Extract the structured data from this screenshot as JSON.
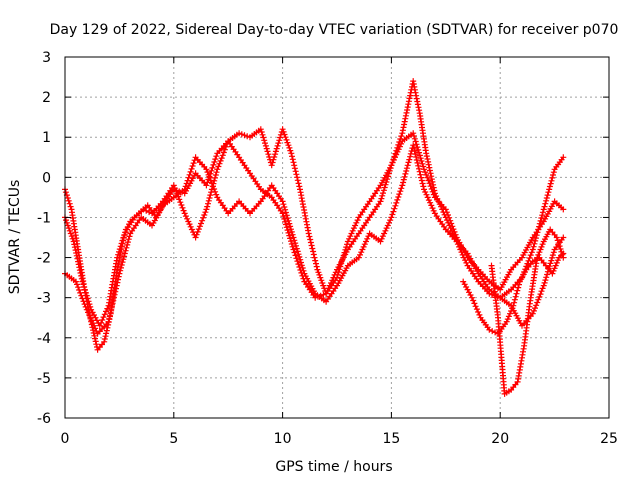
{
  "chart_data": {
    "type": "scatter",
    "title": "Day 129 of 2022, Sidereal Day-to-day VTEC variation (SDTVAR) for receiver p070",
    "xlabel": "GPS time / hours",
    "ylabel": "SDTVAR / TECUs",
    "xlim": [
      0,
      25
    ],
    "ylim": [
      -6,
      3
    ],
    "x_ticks": [
      0,
      5,
      10,
      15,
      20,
      25
    ],
    "y_ticks": [
      -6,
      -5,
      -4,
      -3,
      -2,
      -1,
      0,
      1,
      2,
      3
    ],
    "x_tick_labels": [
      "0",
      "5",
      "10",
      "15",
      "20",
      "25"
    ],
    "y_tick_labels": [
      "-6",
      "-5",
      "-4",
      "-3",
      "-2",
      "-1",
      "0",
      "1",
      "2",
      "3"
    ],
    "grid": true,
    "legend": "none",
    "marker": "+",
    "color": "#ff0000",
    "series": [
      {
        "name": "track-1",
        "x": [
          0.0,
          0.3,
          0.6,
          0.9,
          1.2,
          1.5,
          1.8,
          2.1,
          2.4,
          2.7,
          3.0,
          3.4,
          3.8,
          4.2,
          4.6,
          5.0,
          5.5,
          6.0,
          6.5,
          7.0,
          7.5,
          8.0,
          8.5,
          9.0,
          9.5,
          10.0,
          10.5,
          11.0,
          11.5,
          12.0,
          12.5,
          13.0,
          13.5,
          14.0,
          14.5,
          15.0,
          15.5,
          16.0,
          16.3,
          16.6,
          17.0,
          17.5,
          18.0,
          18.5,
          19.0,
          19.5,
          20.0,
          20.5,
          21.0,
          21.5,
          22.0,
          22.5,
          22.9
        ],
        "y": [
          -0.3,
          -0.8,
          -1.8,
          -2.8,
          -3.6,
          -4.3,
          -4.1,
          -3.4,
          -2.3,
          -1.5,
          -1.1,
          -0.9,
          -0.7,
          -1.0,
          -0.6,
          -0.3,
          -0.4,
          0.1,
          -0.2,
          0.6,
          0.9,
          0.5,
          0.1,
          -0.3,
          -0.5,
          -0.9,
          -1.8,
          -2.6,
          -3.0,
          -2.9,
          -2.3,
          -1.8,
          -1.4,
          -1.0,
          -0.6,
          0.3,
          1.1,
          2.4,
          1.6,
          0.6,
          -0.4,
          -1.0,
          -1.6,
          -2.2,
          -2.6,
          -2.9,
          -3.0,
          -2.8,
          -2.5,
          -1.8,
          -0.8,
          0.2,
          0.5
        ]
      },
      {
        "name": "track-2",
        "x": [
          0.0,
          0.4,
          0.8,
          1.2,
          1.6,
          2.0,
          2.4,
          2.8,
          3.2,
          3.6,
          4.0,
          4.5,
          5.0,
          5.5,
          6.0,
          6.5,
          7.0,
          7.5,
          8.0,
          8.5,
          9.0,
          9.5,
          10.0,
          10.4,
          10.8,
          11.2,
          11.6,
          12.0,
          12.5,
          13.0,
          13.5,
          14.0,
          14.5,
          15.0,
          15.5,
          16.0,
          16.5,
          17.0,
          17.5,
          18.0,
          18.5,
          19.0,
          19.5,
          20.0,
          20.5,
          21.0,
          21.5,
          22.0,
          22.5,
          22.9
        ],
        "y": [
          -1.0,
          -1.6,
          -2.6,
          -3.3,
          -3.7,
          -3.2,
          -2.0,
          -1.3,
          -1.0,
          -0.8,
          -0.9,
          -0.6,
          -0.2,
          -0.9,
          -1.5,
          -0.8,
          0.2,
          0.9,
          1.1,
          1.0,
          1.2,
          0.3,
          1.2,
          0.6,
          -0.3,
          -1.4,
          -2.3,
          -2.9,
          -2.5,
          -1.6,
          -1.0,
          -0.6,
          -0.2,
          0.3,
          0.9,
          1.1,
          0.2,
          -0.5,
          -0.8,
          -1.5,
          -2.0,
          -2.3,
          -2.6,
          -2.8,
          -2.3,
          -2.0,
          -1.5,
          -1.1,
          -0.6,
          -0.8
        ]
      },
      {
        "name": "track-3",
        "x": [
          0.0,
          0.5,
          1.0,
          1.5,
          2.0,
          2.5,
          3.0,
          3.5,
          4.0,
          4.5,
          5.0,
          5.5,
          6.0,
          6.5,
          7.0,
          7.5,
          8.0,
          8.5,
          9.0,
          9.5,
          10.0,
          10.5,
          11.0,
          11.5,
          12.0,
          12.5,
          13.0,
          13.5,
          14.0,
          14.5,
          15.0,
          15.5,
          16.0,
          16.5,
          17.0,
          17.5,
          18.0,
          18.5,
          19.0,
          19.5,
          20.0,
          20.5,
          21.0,
          21.5,
          22.0,
          22.5,
          22.9
        ],
        "y": [
          -2.4,
          -2.6,
          -3.3,
          -3.9,
          -3.6,
          -2.4,
          -1.4,
          -1.0,
          -1.2,
          -0.7,
          -0.5,
          -0.3,
          0.5,
          0.2,
          -0.5,
          -0.9,
          -0.6,
          -0.9,
          -0.6,
          -0.2,
          -0.6,
          -1.5,
          -2.4,
          -2.9,
          -3.1,
          -2.7,
          -2.2,
          -2.0,
          -1.4,
          -1.6,
          -1.0,
          -0.2,
          0.8,
          -0.3,
          -0.9,
          -1.3,
          -1.6,
          -1.9,
          -2.4,
          -2.8,
          -3.0,
          -3.2,
          -3.7,
          -3.4,
          -2.7,
          -1.8,
          -1.5
        ]
      },
      {
        "name": "track-4",
        "x": [
          18.3,
          18.7,
          19.1,
          19.5,
          19.9,
          20.3,
          20.6,
          20.9,
          21.2,
          21.5,
          21.8,
          22.1,
          22.4,
          22.7,
          22.9
        ],
        "y": [
          -2.6,
          -3.0,
          -3.5,
          -3.8,
          -3.9,
          -3.6,
          -3.2,
          -2.6,
          -2.3,
          -2.1,
          -2.0,
          -2.2,
          -2.4,
          -2.0,
          -1.9
        ]
      },
      {
        "name": "track-5",
        "x": [
          19.6,
          19.9,
          20.2,
          20.5,
          20.8,
          21.1,
          21.4,
          21.7,
          22.0,
          22.3,
          22.6,
          22.9
        ],
        "y": [
          -2.2,
          -3.5,
          -5.4,
          -5.3,
          -5.1,
          -4.2,
          -3.0,
          -2.0,
          -1.6,
          -1.3,
          -1.5,
          -2.0
        ]
      }
    ]
  }
}
